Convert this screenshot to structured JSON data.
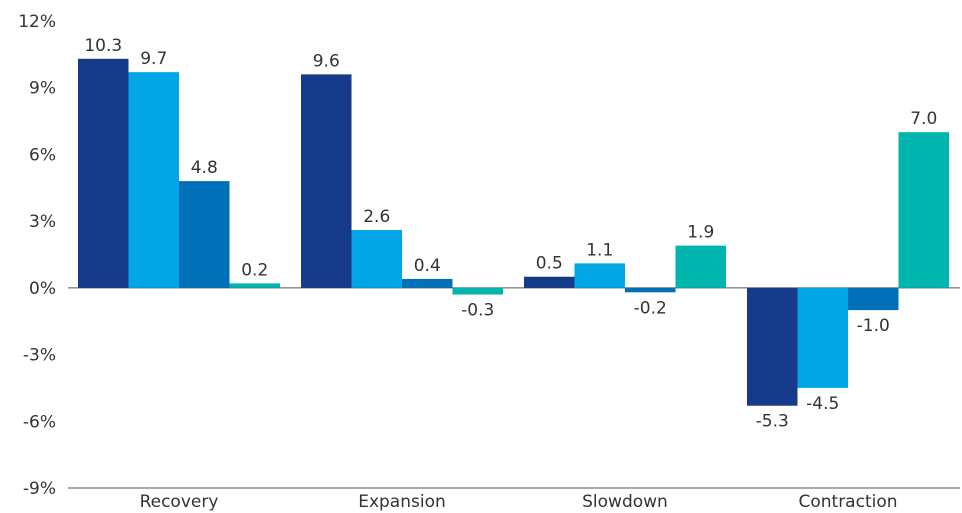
{
  "chart_data": {
    "type": "bar",
    "title": "",
    "xlabel": "",
    "ylabel": "",
    "ylim": [
      -9,
      12
    ],
    "yticks": [
      12,
      9,
      6,
      3,
      0,
      -3,
      -6,
      -9
    ],
    "ytick_suffix": "%",
    "grid": false,
    "legend": "none",
    "categories": [
      "Recovery",
      "Expansion",
      "Slowdown",
      "Contraction"
    ],
    "series": [
      {
        "color": "#163A8A",
        "values": [
          10.3,
          9.6,
          0.5,
          -5.3
        ]
      },
      {
        "color": "#00A6E6",
        "values": [
          9.7,
          2.6,
          1.1,
          -4.5
        ]
      },
      {
        "color": "#0070B8",
        "values": [
          4.8,
          0.4,
          -0.2,
          -1.0
        ]
      },
      {
        "color": "#00B5AD",
        "values": [
          0.2,
          -0.3,
          1.9,
          7.0
        ]
      }
    ]
  }
}
